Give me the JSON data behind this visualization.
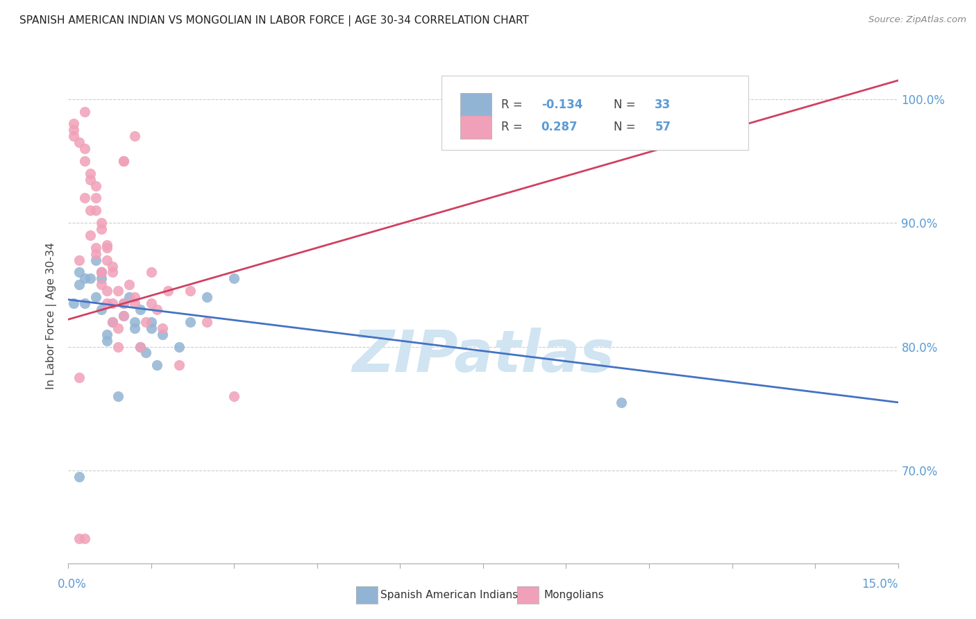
{
  "title": "SPANISH AMERICAN INDIAN VS MONGOLIAN IN LABOR FORCE | AGE 30-34 CORRELATION CHART",
  "source": "Source: ZipAtlas.com",
  "ylabel": "In Labor Force | Age 30-34",
  "xmin": 0.0,
  "xmax": 0.15,
  "ymin": 0.625,
  "ymax": 1.025,
  "blue_color": "#92b4d4",
  "pink_color": "#f0a0b8",
  "blue_line_color": "#4472c4",
  "pink_line_color": "#d04060",
  "watermark_color": "#d0e4f2",
  "right_tick_color": "#5b9bd5",
  "legend_label_blue": "Spanish American Indians",
  "legend_label_pink": "Mongolians",
  "blue_scatter_x": [
    0.001,
    0.002,
    0.002,
    0.003,
    0.003,
    0.004,
    0.005,
    0.005,
    0.006,
    0.006,
    0.006,
    0.007,
    0.007,
    0.008,
    0.009,
    0.01,
    0.01,
    0.011,
    0.012,
    0.012,
    0.013,
    0.013,
    0.014,
    0.015,
    0.015,
    0.016,
    0.017,
    0.02,
    0.022,
    0.025,
    0.03,
    0.1,
    0.002
  ],
  "blue_scatter_y": [
    0.835,
    0.85,
    0.86,
    0.835,
    0.855,
    0.855,
    0.87,
    0.84,
    0.86,
    0.83,
    0.855,
    0.81,
    0.805,
    0.82,
    0.76,
    0.825,
    0.835,
    0.84,
    0.82,
    0.815,
    0.83,
    0.8,
    0.795,
    0.82,
    0.815,
    0.785,
    0.81,
    0.8,
    0.82,
    0.84,
    0.855,
    0.755,
    0.695
  ],
  "pink_scatter_x": [
    0.001,
    0.001,
    0.001,
    0.002,
    0.002,
    0.003,
    0.003,
    0.004,
    0.004,
    0.005,
    0.005,
    0.005,
    0.006,
    0.006,
    0.007,
    0.007,
    0.008,
    0.008,
    0.009,
    0.009,
    0.01,
    0.01,
    0.011,
    0.012,
    0.012,
    0.013,
    0.014,
    0.015,
    0.015,
    0.016,
    0.017,
    0.018,
    0.02,
    0.022,
    0.025,
    0.03,
    0.002,
    0.003,
    0.005,
    0.007,
    0.008,
    0.01,
    0.003,
    0.004,
    0.006,
    0.006,
    0.007,
    0.008,
    0.009,
    0.01,
    0.002,
    0.003,
    0.004,
    0.005,
    0.006,
    0.007,
    0.012
  ],
  "pink_scatter_y": [
    0.98,
    0.975,
    0.97,
    0.965,
    0.87,
    0.99,
    0.92,
    0.91,
    0.89,
    0.88,
    0.875,
    0.93,
    0.86,
    0.85,
    0.845,
    0.835,
    0.835,
    0.82,
    0.815,
    0.8,
    0.835,
    0.825,
    0.85,
    0.84,
    0.835,
    0.8,
    0.82,
    0.86,
    0.835,
    0.83,
    0.815,
    0.845,
    0.785,
    0.845,
    0.82,
    0.76,
    0.775,
    0.96,
    0.91,
    0.88,
    0.865,
    0.95,
    0.95,
    0.935,
    0.895,
    0.86,
    0.87,
    0.86,
    0.845,
    0.95,
    0.645,
    0.645,
    0.94,
    0.92,
    0.9,
    0.882,
    0.97
  ],
  "blue_trend_x": [
    0.0,
    0.15
  ],
  "blue_trend_y": [
    0.838,
    0.755
  ],
  "pink_trend_x": [
    0.0,
    0.15
  ],
  "pink_trend_y": [
    0.822,
    1.015
  ],
  "y_tick_positions": [
    0.7,
    0.8,
    0.9,
    1.0
  ],
  "y_tick_labels": [
    "70.0%",
    "80.0%",
    "90.0%",
    "100.0%"
  ],
  "bg_color": "#ffffff",
  "grid_color": "#cccccc"
}
